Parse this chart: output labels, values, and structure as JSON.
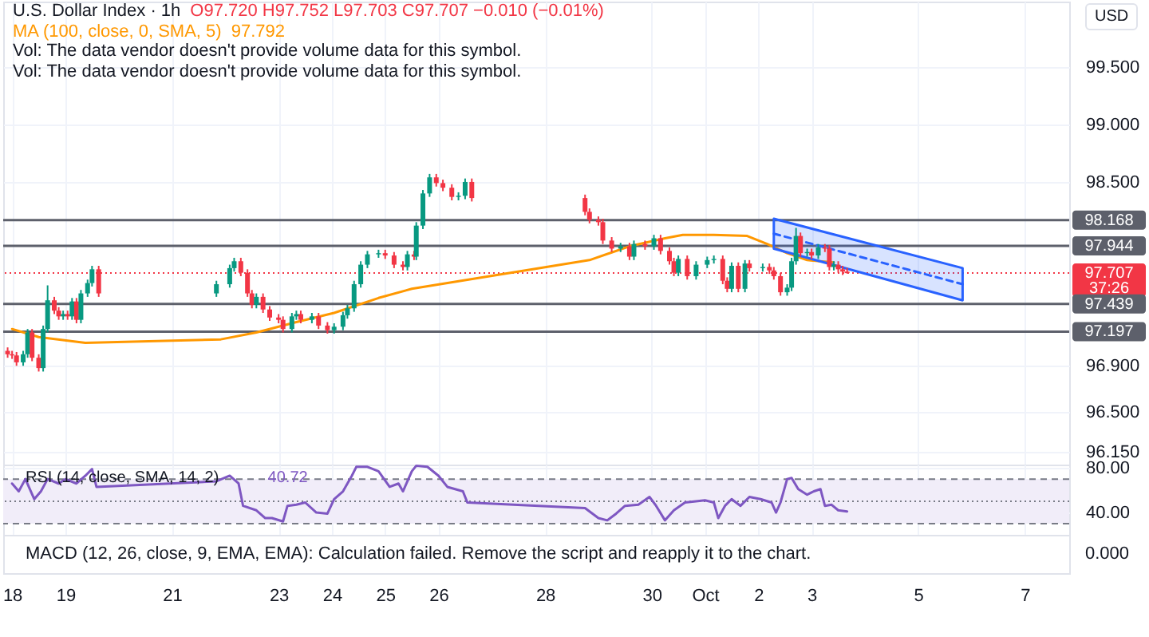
{
  "chart_data": [
    {
      "type": "candlestick",
      "title": "U.S. Dollar Index · 1h",
      "ylabel": "USD",
      "annotations": [
        "O97.720 H97.752 L97.703 C97.707 −0.010 (−0.01%)",
        "97.792",
        "Vol: The data vendor doesn't provide volume data for this symbol.",
        "Vol: The data vendor doesn't provide volume data for this symbol."
      ],
      "x": [
        "--09-17T22:00",
        "--09-18T00:00",
        "--09-18T02:00",
        "--09-18T05:00",
        "--09-18T07:00",
        "--09-18T09:00",
        "--09-18T12:00",
        "--09-18T14:00",
        "--09-18T16:00",
        "--09-18T19:00",
        "--09-18T21:00",
        "--09-18T23:00",
        "--09-19T01:00",
        "--09-19T03:00",
        "--09-19T05:00",
        "--09-19T07:00",
        "--09-19T10:00",
        "--09-19T12:00",
        "--09-19T15:00",
        "--09-21T20:00",
        "--09-22T02:00",
        "--09-22T04:00",
        "--09-22T07:00",
        "--09-22T10:00",
        "--09-22T12:00",
        "--09-22T14:00",
        "--09-22T17:00",
        "--09-22T20:00",
        "--09-23T00:00",
        "--09-23T02:00",
        "--09-23T06:00",
        "--09-23T08:00",
        "--09-23T10:00",
        "--09-23T15:00",
        "--09-23T18:00",
        "--09-23T22:00",
        "--09-24T01:00",
        "--09-24T05:00",
        "--09-24T07:00",
        "--09-24T10:00",
        "--09-24T13:00",
        "--09-24T16:00",
        "--09-24T21:00",
        "--09-25T00:00",
        "--09-25T04:00",
        "--09-25T08:00",
        "--09-25T10:00",
        "--09-25T13:00",
        "--09-25T14:00",
        "--09-25T17:00",
        "--09-25T20:00",
        "--09-25T23:00",
        "--09-26T02:00",
        "--09-26T06:00",
        "--09-26T09:00",
        "--09-26T12:00",
        "--09-26T15:00",
        "--09-28T18:00",
        "--09-28T20:00",
        "--09-29T00:00",
        "--09-29T02:00",
        "--09-29T06:00",
        "--09-29T10:00",
        "--09-29T14:00",
        "--09-29T16:00",
        "--09-29T21:00",
        "--09-30T01:00",
        "--09-30T04:00",
        "--09-30T08:00",
        "--09-30T10:00",
        "--09-30T12:00",
        "--09-30T16:00",
        "--09-30T20:00",
        "--10-01T01:00",
        "--10-01T04:00",
        "--10-01T08:00",
        "--10-01T10:00",
        "--10-01T12:00",
        "--10-01T15:00",
        "--10-01T18:00",
        "--10-01T20:00",
        "--10-02T02:00",
        "--10-02T05:00",
        "--10-02T07:00",
        "--10-02T10:00",
        "--10-02T13:00",
        "--10-02T15:00",
        "--10-02T17:00",
        "--10-02T19:00",
        "--10-02T22:00",
        "--10-03T00:00",
        "--10-03T03:00",
        "--10-03T06:00",
        "--10-03T08:00",
        "--10-03T10:00",
        "--10-03T12:00",
        "--10-03T14:00",
        "--10-03T16:00"
      ],
      "ohlc": [
        [
          97.03,
          97.06,
          96.97,
          97.0
        ],
        [
          97.0,
          97.03,
          96.96,
          96.99
        ],
        [
          96.99,
          97.02,
          96.9,
          96.93
        ],
        [
          96.93,
          97.03,
          96.9,
          97.0
        ],
        [
          97.0,
          97.22,
          96.97,
          97.19
        ],
        [
          97.19,
          97.22,
          96.94,
          96.97
        ],
        [
          96.97,
          97.0,
          96.85,
          96.88
        ],
        [
          96.88,
          97.25,
          96.85,
          97.22
        ],
        [
          97.22,
          97.6,
          97.19,
          97.47
        ],
        [
          97.47,
          97.5,
          97.35,
          97.38
        ],
        [
          97.38,
          97.41,
          97.3,
          97.33
        ],
        [
          97.33,
          97.38,
          97.3,
          97.35
        ],
        [
          97.35,
          97.38,
          97.3,
          97.33
        ],
        [
          97.33,
          97.49,
          97.3,
          97.46
        ],
        [
          97.46,
          97.49,
          97.27,
          97.3
        ],
        [
          97.3,
          97.56,
          97.27,
          97.53
        ],
        [
          97.53,
          97.65,
          97.5,
          97.62
        ],
        [
          97.62,
          97.77,
          97.59,
          97.74
        ],
        [
          97.74,
          97.77,
          97.5,
          97.53
        ],
        [
          97.53,
          97.64,
          97.5,
          97.61
        ],
        [
          97.61,
          97.78,
          97.58,
          97.75
        ],
        [
          97.75,
          97.84,
          97.72,
          97.81
        ],
        [
          97.81,
          97.84,
          97.68,
          97.71
        ],
        [
          97.71,
          97.74,
          97.5,
          97.53
        ],
        [
          97.53,
          97.56,
          97.4,
          97.43
        ],
        [
          97.43,
          97.53,
          97.4,
          97.5
        ],
        [
          97.5,
          97.53,
          97.36,
          97.39
        ],
        [
          97.39,
          97.42,
          97.29,
          97.32
        ],
        [
          97.32,
          97.35,
          97.27,
          97.3
        ],
        [
          97.3,
          97.33,
          97.19,
          97.22
        ],
        [
          97.22,
          97.36,
          97.19,
          97.33
        ],
        [
          97.33,
          97.38,
          97.3,
          97.35
        ],
        [
          97.35,
          97.38,
          97.27,
          97.3
        ],
        [
          97.3,
          97.36,
          97.27,
          97.33
        ],
        [
          97.33,
          97.36,
          97.22,
          97.25
        ],
        [
          97.25,
          97.28,
          97.18,
          97.21
        ],
        [
          97.21,
          97.27,
          97.18,
          97.24
        ],
        [
          97.24,
          97.37,
          97.21,
          97.34
        ],
        [
          97.34,
          97.43,
          97.31,
          97.4
        ],
        [
          97.4,
          97.64,
          97.37,
          97.61
        ],
        [
          97.61,
          97.81,
          97.58,
          97.78
        ],
        [
          97.78,
          97.9,
          97.75,
          97.87
        ],
        [
          97.87,
          97.91,
          97.84,
          97.88
        ],
        [
          97.88,
          97.91,
          97.83,
          97.86
        ],
        [
          97.86,
          97.89,
          97.75,
          97.78
        ],
        [
          97.78,
          97.81,
          97.73,
          97.76
        ],
        [
          97.76,
          97.9,
          97.73,
          97.87
        ],
        [
          97.87,
          97.9,
          97.82,
          97.85
        ],
        [
          97.85,
          98.15,
          97.82,
          98.12
        ],
        [
          98.12,
          98.43,
          98.09,
          98.4
        ],
        [
          98.4,
          98.57,
          98.37,
          98.54
        ],
        [
          98.54,
          98.57,
          98.46,
          98.49
        ],
        [
          98.49,
          98.52,
          98.42,
          98.45
        ],
        [
          98.45,
          98.48,
          98.34,
          98.37
        ],
        [
          98.37,
          98.41,
          98.34,
          98.38
        ],
        [
          98.38,
          98.53,
          98.35,
          98.5
        ],
        [
          98.5,
          98.53,
          98.33,
          98.36
        ],
        [
          98.36,
          98.39,
          98.21,
          98.24
        ],
        [
          98.24,
          98.27,
          98.14,
          98.17
        ],
        [
          98.17,
          98.2,
          98.12,
          98.15
        ],
        [
          98.15,
          98.18,
          97.96,
          97.99
        ],
        [
          97.99,
          98.02,
          97.89,
          97.92
        ],
        [
          97.92,
          97.97,
          97.89,
          97.94
        ],
        [
          97.94,
          97.97,
          97.82,
          97.85
        ],
        [
          97.85,
          97.99,
          97.82,
          97.96
        ],
        [
          97.96,
          97.99,
          97.91,
          97.94
        ],
        [
          97.94,
          98.04,
          97.91,
          98.01
        ],
        [
          98.01,
          98.04,
          97.87,
          97.9
        ],
        [
          97.9,
          97.93,
          97.78,
          97.81
        ],
        [
          97.81,
          97.84,
          97.68,
          97.71
        ],
        [
          97.71,
          97.86,
          97.68,
          97.83
        ],
        [
          97.83,
          97.86,
          97.65,
          97.68
        ],
        [
          97.68,
          97.81,
          97.65,
          97.78
        ],
        [
          97.78,
          97.85,
          97.75,
          97.82
        ],
        [
          97.82,
          97.86,
          97.79,
          97.83
        ],
        [
          97.83,
          97.86,
          97.61,
          97.64
        ],
        [
          97.64,
          97.67,
          97.54,
          97.57
        ],
        [
          97.57,
          97.8,
          97.54,
          97.77
        ],
        [
          97.77,
          97.8,
          97.54,
          97.57
        ],
        [
          97.57,
          97.82,
          97.54,
          97.79
        ],
        [
          97.79,
          97.82,
          97.72,
          97.75
        ],
        [
          97.75,
          97.79,
          97.72,
          97.76
        ],
        [
          97.76,
          97.79,
          97.7,
          97.73
        ],
        [
          97.73,
          97.76,
          97.65,
          97.68
        ],
        [
          97.68,
          97.71,
          97.51,
          97.54
        ],
        [
          97.54,
          97.61,
          97.51,
          97.58
        ],
        [
          97.58,
          97.84,
          97.55,
          97.81
        ],
        [
          97.81,
          98.1,
          97.78,
          98.03
        ],
        [
          98.03,
          98.06,
          97.85,
          97.88
        ],
        [
          97.88,
          97.92,
          97.85,
          97.89
        ],
        [
          97.89,
          97.92,
          97.83,
          97.86
        ],
        [
          97.86,
          97.96,
          97.83,
          97.93
        ],
        [
          97.93,
          97.96,
          97.89,
          97.92
        ],
        [
          97.92,
          97.95,
          97.73,
          97.76
        ],
        [
          97.76,
          97.81,
          97.73,
          97.78
        ],
        [
          97.78,
          97.81,
          97.71,
          97.74
        ],
        [
          97.74,
          97.77,
          97.69,
          97.72
        ],
        [
          97.72,
          97.752,
          97.703,
          97.707
        ]
      ],
      "colors": [
        "#f23645",
        "#f23645",
        "#f23645",
        "#089981",
        "#089981",
        "#f23645",
        "#f23645",
        "#089981",
        "#089981",
        "#f23645",
        "#f23645",
        "#089981",
        "#f23645",
        "#089981",
        "#f23645",
        "#089981",
        "#089981",
        "#089981",
        "#f23645",
        "#089981",
        "#089981",
        "#089981",
        "#f23645",
        "#f23645",
        "#f23645",
        "#089981",
        "#f23645",
        "#f23645",
        "#f23645",
        "#f23645",
        "#089981",
        "#089981",
        "#f23645",
        "#089981",
        "#f23645",
        "#f23645",
        "#089981",
        "#089981",
        "#089981",
        "#089981",
        "#089981",
        "#089981",
        "#089981",
        "#f23645",
        "#f23645",
        "#f23645",
        "#089981",
        "#f23645",
        "#089981",
        "#089981",
        "#089981",
        "#f23645",
        "#f23645",
        "#f23645",
        "#089981",
        "#089981",
        "#f23645",
        "#f23645",
        "#f23645",
        "#f23645",
        "#f23645",
        "#f23645",
        "#089981",
        "#f23645",
        "#089981",
        "#f23645",
        "#089981",
        "#f23645",
        "#f23645",
        "#f23645",
        "#089981",
        "#f23645",
        "#089981",
        "#089981",
        "#089981",
        "#f23645",
        "#f23645",
        "#089981",
        "#f23645",
        "#089981",
        "#f23645",
        "#089981",
        "#f23645",
        "#f23645",
        "#f23645",
        "#089981",
        "#089981",
        "#089981",
        "#f23645",
        "#089981",
        "#f23645",
        "#089981",
        "#f23645",
        "#f23645",
        "#089981",
        "#f23645",
        "#f23645",
        "#f23645"
      ],
      "series": [
        {
          "name": "MA (100, close, 0, SMA, 5)",
          "type": "line",
          "color": "#ff9800",
          "x": [
            "--09-18T00:00",
            "--09-18T12:00",
            "--09-19T09:00",
            "--09-21T22:00",
            "--09-22T14:00",
            "--09-23T08:00",
            "--09-24T01:00",
            "--09-24T21:00",
            "--09-25T12:00",
            "--09-28T20:00",
            "--09-29T14:00",
            "--09-30T06:00",
            "--09-30T14:00",
            "--10-01T04:00",
            "--10-01T19:00",
            "--10-02T04:00",
            "--10-02T13:00",
            "--10-02T22:00",
            "--10-03T10:00"
          ],
          "values": [
            97.22,
            97.15,
            97.1,
            97.13,
            97.19,
            97.28,
            97.36,
            97.49,
            97.57,
            97.82,
            97.94,
            98.01,
            98.04,
            98.04,
            98.03,
            97.96,
            97.88,
            97.82,
            97.8
          ]
        },
        {
          "type": "line",
          "line_style": "dashed",
          "color": "#2962ff",
          "x": [
            "--10-02T07:00",
            "--10-05T20:00"
          ],
          "values": [
            98.05,
            97.61
          ],
          "lower": [
            97.92,
            97.47
          ],
          "upper": [
            98.18,
            97.75
          ]
        }
      ],
      "ref_lines": [
        {
          "axis": "y",
          "value": 98.168,
          "label": "98.168",
          "color": "#5d606b"
        },
        {
          "axis": "y",
          "value": 97.944,
          "label": "97.944",
          "color": "#5d606b"
        },
        {
          "axis": "y",
          "value": 97.439,
          "label": "97.439",
          "color": "#5d606b"
        },
        {
          "axis": "y",
          "value": 97.197,
          "label": "97.197",
          "color": "#5d606b"
        },
        {
          "axis": "y",
          "value": 97.707,
          "label": "97.707 37:26",
          "color": "#f23645",
          "line_style": "dotted"
        }
      ],
      "xlim": [
        "--09-17T20:00",
        "--10-07T20:00"
      ],
      "xticks": [
        {
          "value": "--09-18",
          "label": null
        },
        {
          "value": "--09-19",
          "label": null
        },
        {
          "value": "--09-21",
          "label": null
        },
        {
          "value": "--09-23",
          "label": null
        },
        {
          "value": "--09-24",
          "label": null
        },
        {
          "value": "--09-25",
          "label": null
        },
        {
          "value": "--09-26",
          "label": null
        },
        {
          "value": "--09-28",
          "label": null
        },
        {
          "value": "--09-30",
          "label": null
        },
        {
          "value": "--10-01",
          "label": null
        },
        {
          "value": "--10-02",
          "label": null
        },
        {
          "value": "--10-03",
          "label": null
        },
        {
          "value": "--10-05",
          "label": null
        },
        {
          "value": "--10-07",
          "label": null
        }
      ],
      "ylim": [
        96.04,
        100.07
      ],
      "yticks": [
        {
          "value": 99.5,
          "label": "99.500"
        },
        {
          "value": 99.0,
          "label": "99.000"
        },
        {
          "value": 98.5,
          "label": "98.500"
        },
        {
          "value": 96.9,
          "label": "96.900"
        },
        {
          "value": 96.5,
          "label": "96.500"
        },
        {
          "value": 96.15,
          "label": "96.150"
        }
      ],
      "grid": true,
      "tick_labels": "y"
    },
    {
      "type": "line",
      "title": "RSI (14, close, SMA, 14, 2)",
      "annotations": [
        "40.72"
      ],
      "xticks": [
        {
          "value": "--09-18",
          "label": "18"
        },
        {
          "value": "--09-19",
          "label": "19"
        },
        {
          "value": "--09-21",
          "label": "21"
        },
        {
          "value": "--09-23",
          "label": "23"
        },
        {
          "value": "--09-24",
          "label": "24"
        },
        {
          "value": "--09-25",
          "label": "25"
        },
        {
          "value": "--09-26",
          "label": "26"
        },
        {
          "value": "--09-28",
          "label": "28"
        },
        {
          "value": "--09-30",
          "label": "30"
        },
        {
          "value": "--10-01",
          "label": "Oct"
        },
        {
          "value": "--10-02",
          "label": "2"
        },
        {
          "value": "--10-03",
          "label": "3"
        },
        {
          "value": "--10-05",
          "label": "5"
        },
        {
          "value": "--10-07",
          "label": "7"
        }
      ],
      "series": [
        {
          "type": "line",
          "color": "#7e57c2",
          "x": [
            "--09-18T00:00",
            "--09-18T03:00",
            "--09-18T06:00",
            "--09-18T10:00",
            "--09-18T13:00",
            "--09-18T16:00",
            "--09-18T21:00",
            "--09-19T00:00",
            "--09-19T05:00",
            "--09-19T09:00",
            "--09-19T12:00",
            "--09-19T14:00",
            "--09-21T20:00",
            "--09-22T02:00",
            "--09-22T06:00",
            "--09-22T08:00",
            "--09-22T14:00",
            "--09-22T18:00",
            "--09-22T21:00",
            "--09-23T02:00",
            "--09-23T04:00",
            "--09-23T08:00",
            "--09-23T12:00",
            "--09-23T17:00",
            "--09-23T22:00",
            "--09-24T01:00",
            "--09-24T05:00",
            "--09-24T09:00",
            "--09-24T11:00",
            "--09-24T16:00",
            "--09-24T21:00",
            "--09-25T02:00",
            "--09-25T06:00",
            "--09-25T08:00",
            "--09-25T12:00",
            "--09-25T14:00",
            "--09-25T19:00",
            "--09-26T00:00",
            "--09-26T04:00",
            "--09-26T11:00",
            "--09-26T13:00",
            "--09-28T18:00",
            "--09-29T00:00",
            "--09-29T04:00",
            "--09-29T08:00",
            "--09-29T12:00",
            "--09-29T18:00",
            "--09-29T23:00",
            "--09-30T02:00",
            "--09-30T06:00",
            "--09-30T10:00",
            "--09-30T15:00",
            "--10-01T00:00",
            "--10-01T04:00",
            "--10-01T06:00",
            "--10-01T09:00",
            "--10-01T12:00",
            "--10-01T16:00",
            "--10-01T20:00",
            "--10-02T01:00",
            "--10-02T06:00",
            "--10-02T08:00",
            "--10-02T10:00",
            "--10-02T13:00",
            "--10-02T15:00",
            "--10-02T18:00",
            "--10-02T22:00",
            "--10-03T01:00",
            "--10-03T04:00",
            "--10-03T06:00",
            "--10-03T09:00",
            "--10-03T12:00",
            "--10-03T16:00"
          ],
          "values": [
            66,
            59,
            70,
            52,
            59,
            70,
            66,
            70,
            66,
            73,
            79,
            63,
            68,
            73,
            66,
            46,
            42,
            35,
            35,
            32,
            46,
            47,
            49,
            40,
            39,
            52,
            59,
            73,
            81,
            81,
            77,
            63,
            66,
            59,
            77,
            82,
            81,
            73,
            63,
            59,
            49,
            44,
            35,
            33,
            39,
            46,
            47,
            54,
            46,
            33,
            42,
            49,
            51,
            49,
            35,
            46,
            52,
            46,
            54,
            52,
            49,
            40,
            49,
            70,
            71,
            61,
            56,
            59,
            61,
            46,
            47,
            42,
            41
          ]
        }
      ],
      "ref_lines": [
        {
          "axis": "y",
          "value": 70,
          "color": "#787b86",
          "line_style": "dashed"
        },
        {
          "axis": "y",
          "value": 50,
          "color": "#787b86",
          "line_style": "dotted"
        },
        {
          "axis": "y",
          "value": 30,
          "color": "#787b86",
          "line_style": "dashed"
        }
      ],
      "bands": [
        {
          "axis": "y",
          "from": 30,
          "to": 70,
          "color": "#f1edf9"
        }
      ],
      "xlim": [
        "--09-17T20:00",
        "--10-07T20:00"
      ],
      "ylim": [
        20,
        83
      ],
      "yticks": [
        {
          "value": 80,
          "label": "80.00"
        },
        {
          "value": 40,
          "label": "40.00"
        }
      ],
      "grid": true
    },
    {
      "type": "other",
      "annotations": [
        "MACD (12, 26, close, 9, EMA, EMA): Calculation failed. Remove the script and reapply it to the chart.",
        "0.000"
      ]
    }
  ]
}
